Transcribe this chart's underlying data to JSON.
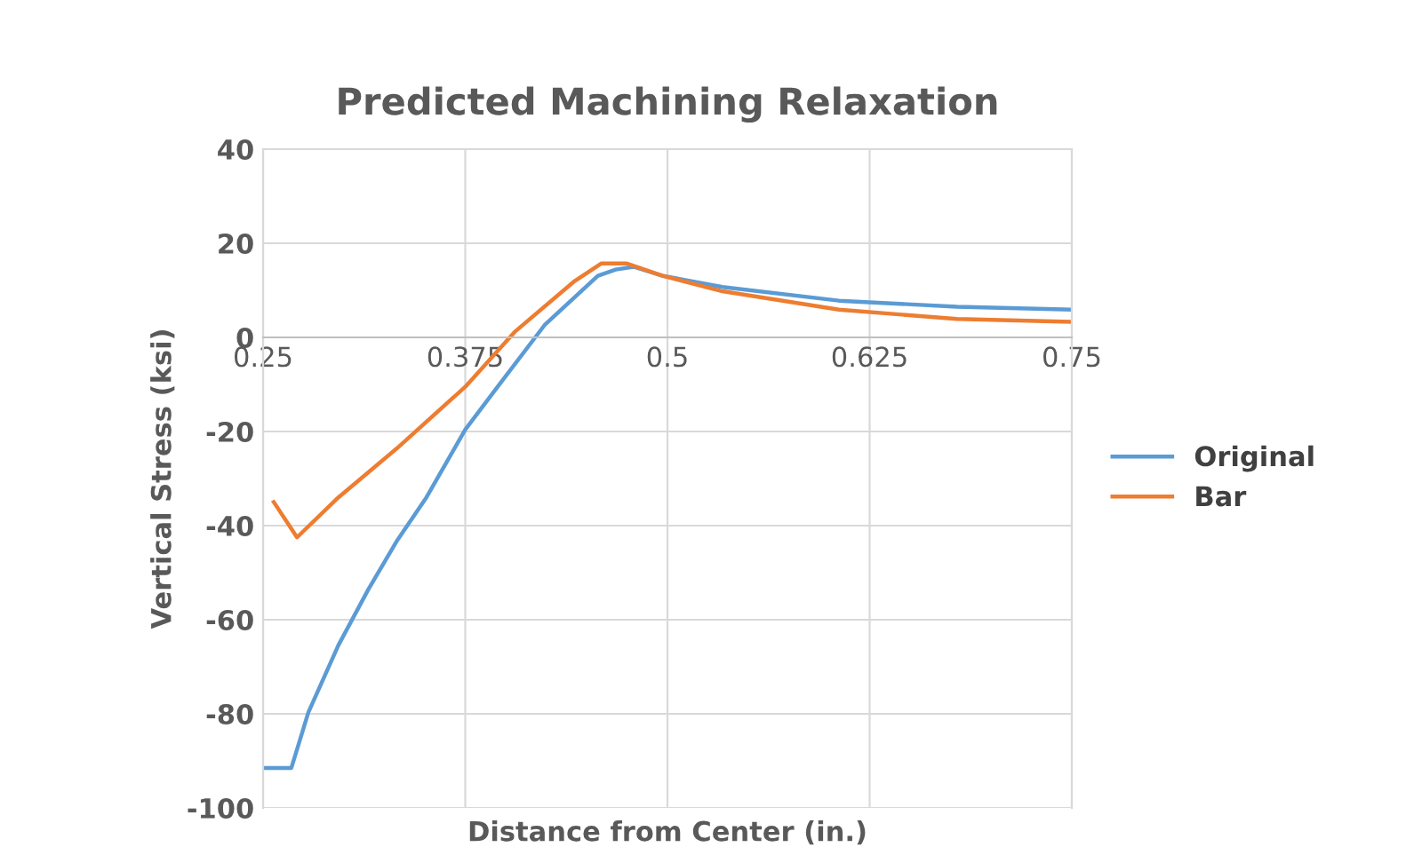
{
  "chart_data": {
    "type": "line",
    "title": "Predicted Machining Relaxation",
    "xlabel": "Distance from Center (in.)",
    "ylabel": "Vertical Stress (ksi)",
    "xlim": [
      0.25,
      0.75
    ],
    "xticks": [
      0.25,
      0.375,
      0.5,
      0.625,
      0.75
    ],
    "ylim": [
      -100,
      40
    ],
    "yticks": [
      -100,
      -80,
      -60,
      -40,
      -20,
      0,
      20,
      40
    ],
    "grid": true,
    "legend": "right",
    "marker": "none",
    "line_style": "solid",
    "series": [
      {
        "name": "Original",
        "color": "#5b9bd5",
        "x": [
          0.25,
          0.2675,
          0.278,
          0.2966,
          0.315,
          0.333,
          0.351,
          0.375,
          0.395,
          0.424,
          0.457,
          0.468,
          0.479,
          0.497,
          0.534,
          0.606,
          0.679,
          0.75
        ],
        "values": [
          -91.5,
          -91.5,
          -79.7,
          -65.4,
          -53.6,
          -43.1,
          -34,
          -19.6,
          -10.5,
          2.6,
          13.1,
          14.4,
          15,
          13.1,
          10.7,
          7.8,
          6.5,
          5.9
        ]
      },
      {
        "name": "Bar",
        "color": "#ed7d31",
        "x": [
          0.2566,
          0.271,
          0.2966,
          0.333,
          0.375,
          0.406,
          0.442,
          0.459,
          0.475,
          0.497,
          0.534,
          0.606,
          0.679,
          0.75
        ],
        "values": [
          -35,
          -42.5,
          -34,
          -23.5,
          -10.5,
          1.3,
          11.8,
          15.7,
          15.7,
          13.1,
          9.8,
          5.9,
          3.9,
          3.3
        ]
      }
    ]
  }
}
